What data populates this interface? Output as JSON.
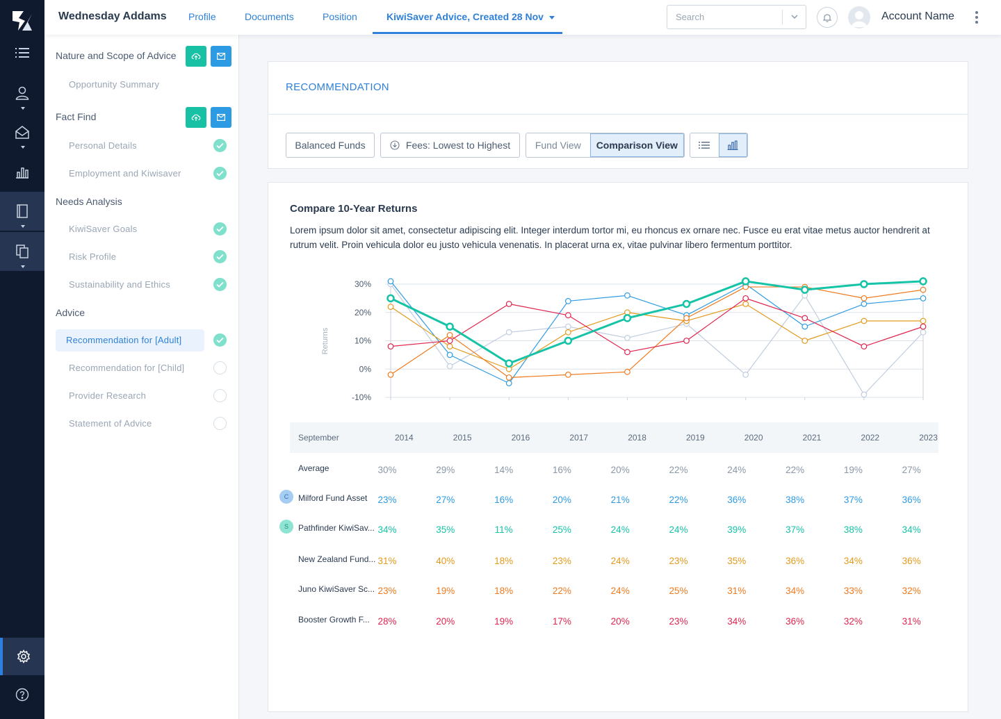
{
  "header": {
    "client_name": "Wednesday Addams",
    "tabs": [
      "Profile",
      "Documents",
      "Position"
    ],
    "active_tab": "KiwiSaver Advice, Created 28 Nov",
    "search_placeholder": "Search",
    "account_name": "Account Name"
  },
  "rail_icons": [
    "list-icon",
    "user-icon",
    "mail-icon",
    "bar-chart-icon",
    "notebook-icon",
    "documents-icon",
    "settings-icon",
    "help-icon"
  ],
  "sidebar": {
    "sections": [
      {
        "title": "Nature and Scope of Advice",
        "items": [
          {
            "label": "Opportunity Summary",
            "status": "none"
          }
        ]
      },
      {
        "title": "Fact Find",
        "items": [
          {
            "label": "Personal Details",
            "status": "done"
          },
          {
            "label": "Employment and Kiwisaver",
            "status": "done"
          }
        ]
      },
      {
        "title": "Needs Analysis",
        "items": [
          {
            "label": "KiwiSaver Goals",
            "status": "done"
          },
          {
            "label": "Risk Profile",
            "status": "done"
          },
          {
            "label": "Sustainability and Ethics",
            "status": "done"
          }
        ]
      },
      {
        "title": "Advice",
        "items": [
          {
            "label": "Recommendation for [Adult]",
            "status": "done"
          },
          {
            "label": "Recommendation for [Child]",
            "status": "empty"
          },
          {
            "label": "Provider Research",
            "status": "empty"
          },
          {
            "label": "Statement of Advice",
            "status": "empty"
          }
        ]
      }
    ]
  },
  "recommendation": {
    "title": "RECOMMENDATION",
    "filter_fund": "Balanced Funds",
    "filter_sort": "Fees: Lowest to Highest",
    "view_fund": "Fund View",
    "view_comparison": "Comparison View"
  },
  "comparison": {
    "title": "Compare 10-Year Returns",
    "description": "Lorem ipsum dolor sit amet, consectetur adipiscing elit. Integer interdum tortor mi, eu rhoncus ex ornare nec. Fusce eu erat vitae metus auctor hendrerit at rutrum velit. Proin vehicula dolor eu justo vehicula venenatis. In placerat urna ex, vitae pulvinar libero fermentum porttitor.",
    "table_header": "September",
    "years": [
      "2014",
      "2015",
      "2016",
      "2017",
      "2018",
      "2019",
      "2020",
      "2021",
      "2022",
      "2023"
    ],
    "rows": [
      {
        "label": "Average",
        "badge": "",
        "color": "#8a97a8",
        "values": [
          "30%",
          "29%",
          "14%",
          "16%",
          "20%",
          "22%",
          "24%",
          "22%",
          "19%",
          "27%"
        ]
      },
      {
        "label": "Milford Fund Asset",
        "badge": "C",
        "color": "#2d9be4",
        "values": [
          "23%",
          "27%",
          "16%",
          "20%",
          "21%",
          "22%",
          "36%",
          "38%",
          "37%",
          "36%"
        ]
      },
      {
        "label": "Pathfinder KiwiSav...",
        "badge": "S",
        "color": "#15c3a6",
        "values": [
          "34%",
          "35%",
          "11%",
          "25%",
          "24%",
          "24%",
          "39%",
          "37%",
          "38%",
          "34%"
        ]
      },
      {
        "label": "New Zealand Fund...",
        "badge": "",
        "color": "#e39a1c",
        "values": [
          "31%",
          "40%",
          "18%",
          "23%",
          "24%",
          "23%",
          "35%",
          "36%",
          "34%",
          "36%"
        ]
      },
      {
        "label": "Juno KiwiSaver Sc...",
        "badge": "",
        "color": "#f07a1e",
        "values": [
          "23%",
          "19%",
          "18%",
          "22%",
          "24%",
          "25%",
          "31%",
          "34%",
          "33%",
          "32%"
        ]
      },
      {
        "label": "Booster Growth F...",
        "badge": "",
        "color": "#e0244e",
        "values": [
          "28%",
          "20%",
          "19%",
          "17%",
          "20%",
          "23%",
          "34%",
          "36%",
          "32%",
          "31%"
        ]
      }
    ]
  },
  "chart_data": {
    "type": "line",
    "ylabel": "Returns",
    "ylim": [
      -10,
      30
    ],
    "yticks": [
      "30%",
      "20%",
      "10%",
      "0%",
      "-10%"
    ],
    "x": [
      "2014",
      "2015",
      "2016",
      "2017",
      "2018",
      "2019",
      "2020",
      "2021",
      "2022",
      "2023"
    ],
    "grid": true,
    "series": [
      {
        "color": "#c0cde0",
        "values": [
          30,
          1,
          13,
          15,
          11,
          16,
          -2,
          26,
          -9,
          13
        ]
      },
      {
        "color": "#2d9be4",
        "values": [
          31,
          5,
          -5,
          24,
          26,
          19,
          30,
          15,
          23,
          25
        ]
      },
      {
        "color": "#e39a1c",
        "values": [
          22,
          8,
          0,
          13,
          20,
          17,
          23,
          10,
          17,
          17
        ]
      },
      {
        "color": "#f07a1e",
        "values": [
          -2,
          12,
          -3,
          -2,
          -1,
          18,
          29,
          29,
          25,
          28
        ]
      },
      {
        "color": "#e0244e",
        "values": [
          8,
          10,
          23,
          19,
          6,
          10,
          25,
          18,
          8,
          15
        ]
      },
      {
        "color": "#15c3a6",
        "values": [
          25,
          15,
          2,
          10,
          18,
          23,
          31,
          28,
          30,
          31
        ],
        "bold": true
      }
    ]
  }
}
